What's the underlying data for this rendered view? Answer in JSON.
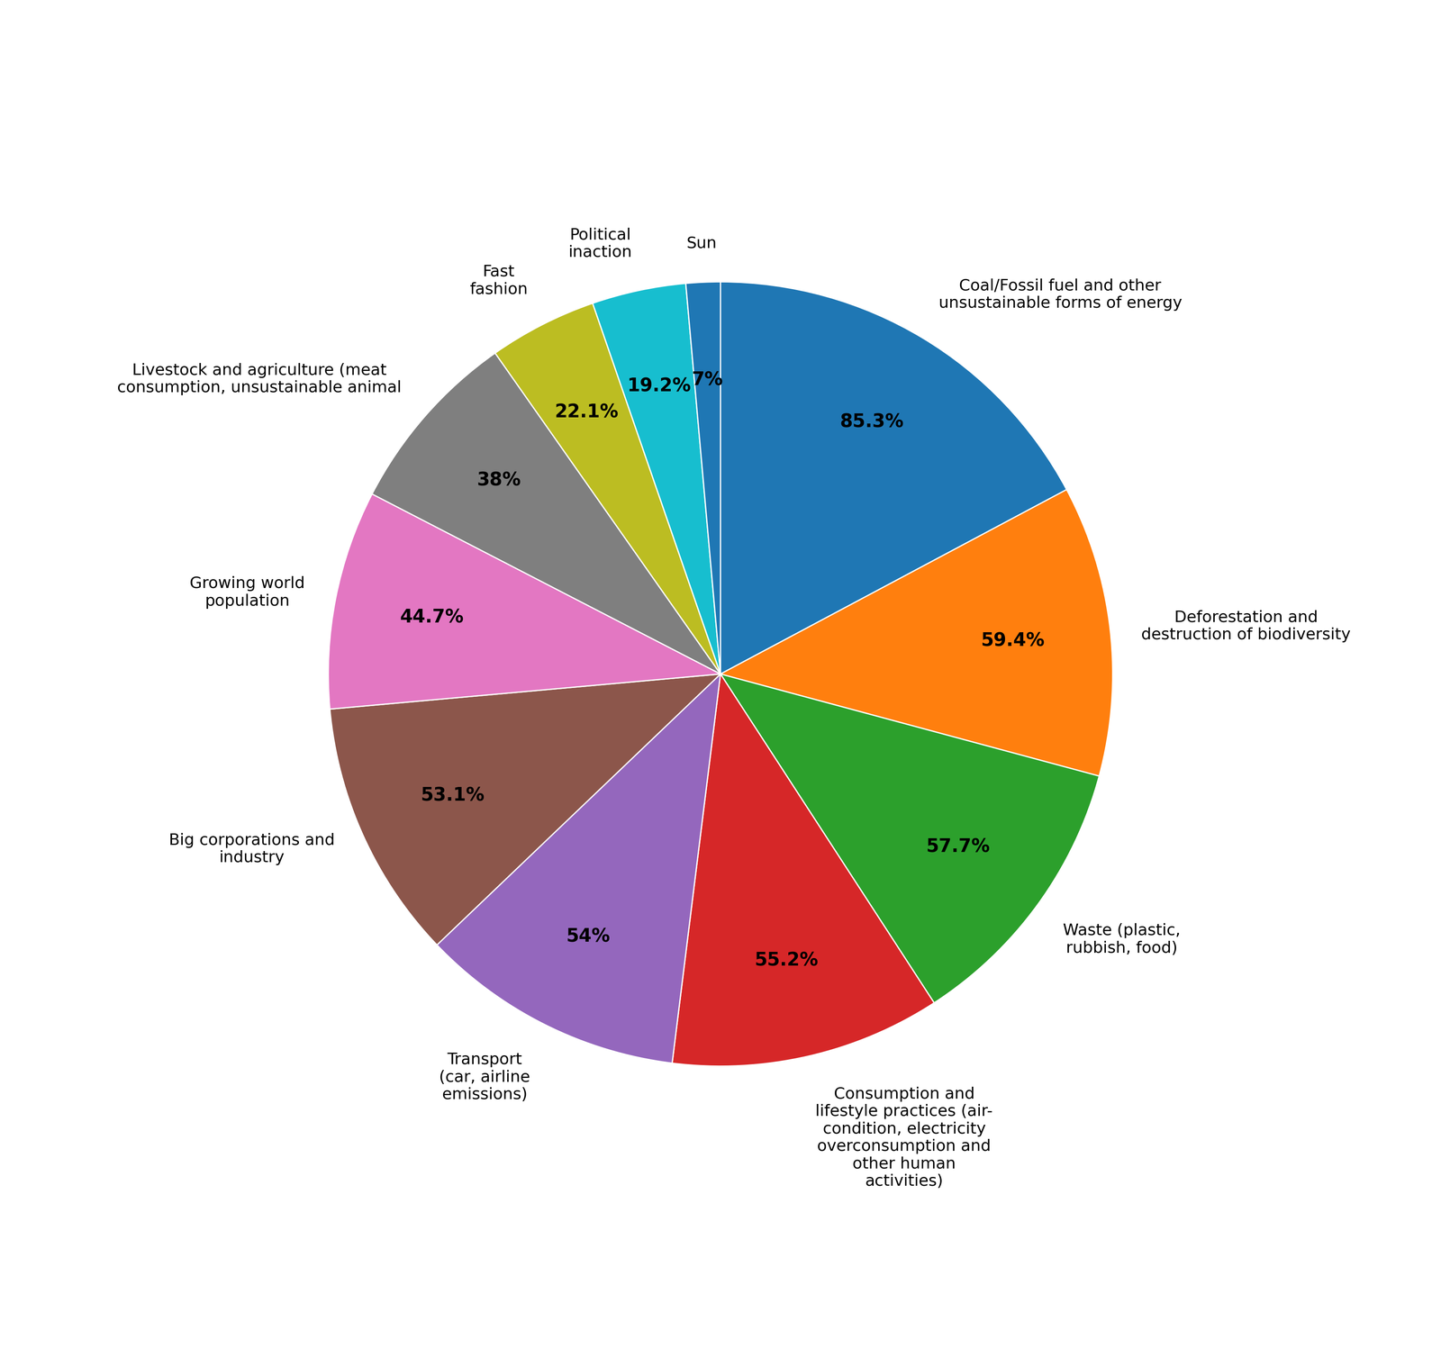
{
  "chart_data": {
    "type": "pie",
    "categories": [
      "Coal/Fossil fuel and other\nunsustainable forms of energy",
      "Deforestation and\ndestruction of biodiversity",
      "Waste (plastic,\nrubbish, food)",
      "Consumption and\nlifestyle practices (air-\ncondition, electricity\noverconsumption and\nother human\nactivities)",
      "Transport\n(car, airline\nemissions)",
      "Big corporations and\nindustry",
      "Growing world\npopulation",
      "Livestock and agriculture (meat\nconsumption, unsustainable animal",
      "Fast\nfashion",
      "Political\ninaction",
      "Sun"
    ],
    "values": [
      85.3,
      59.4,
      57.7,
      55.2,
      54.0,
      53.1,
      44.7,
      38.0,
      22.1,
      19.2,
      7.0
    ],
    "value_labels": [
      "85.3%",
      "59.4%",
      "57.7%",
      "55.2%",
      "54%",
      "53.1%",
      "44.7%",
      "38%",
      "22.1%",
      "19.2%",
      "7%"
    ],
    "data_labels": true
  }
}
